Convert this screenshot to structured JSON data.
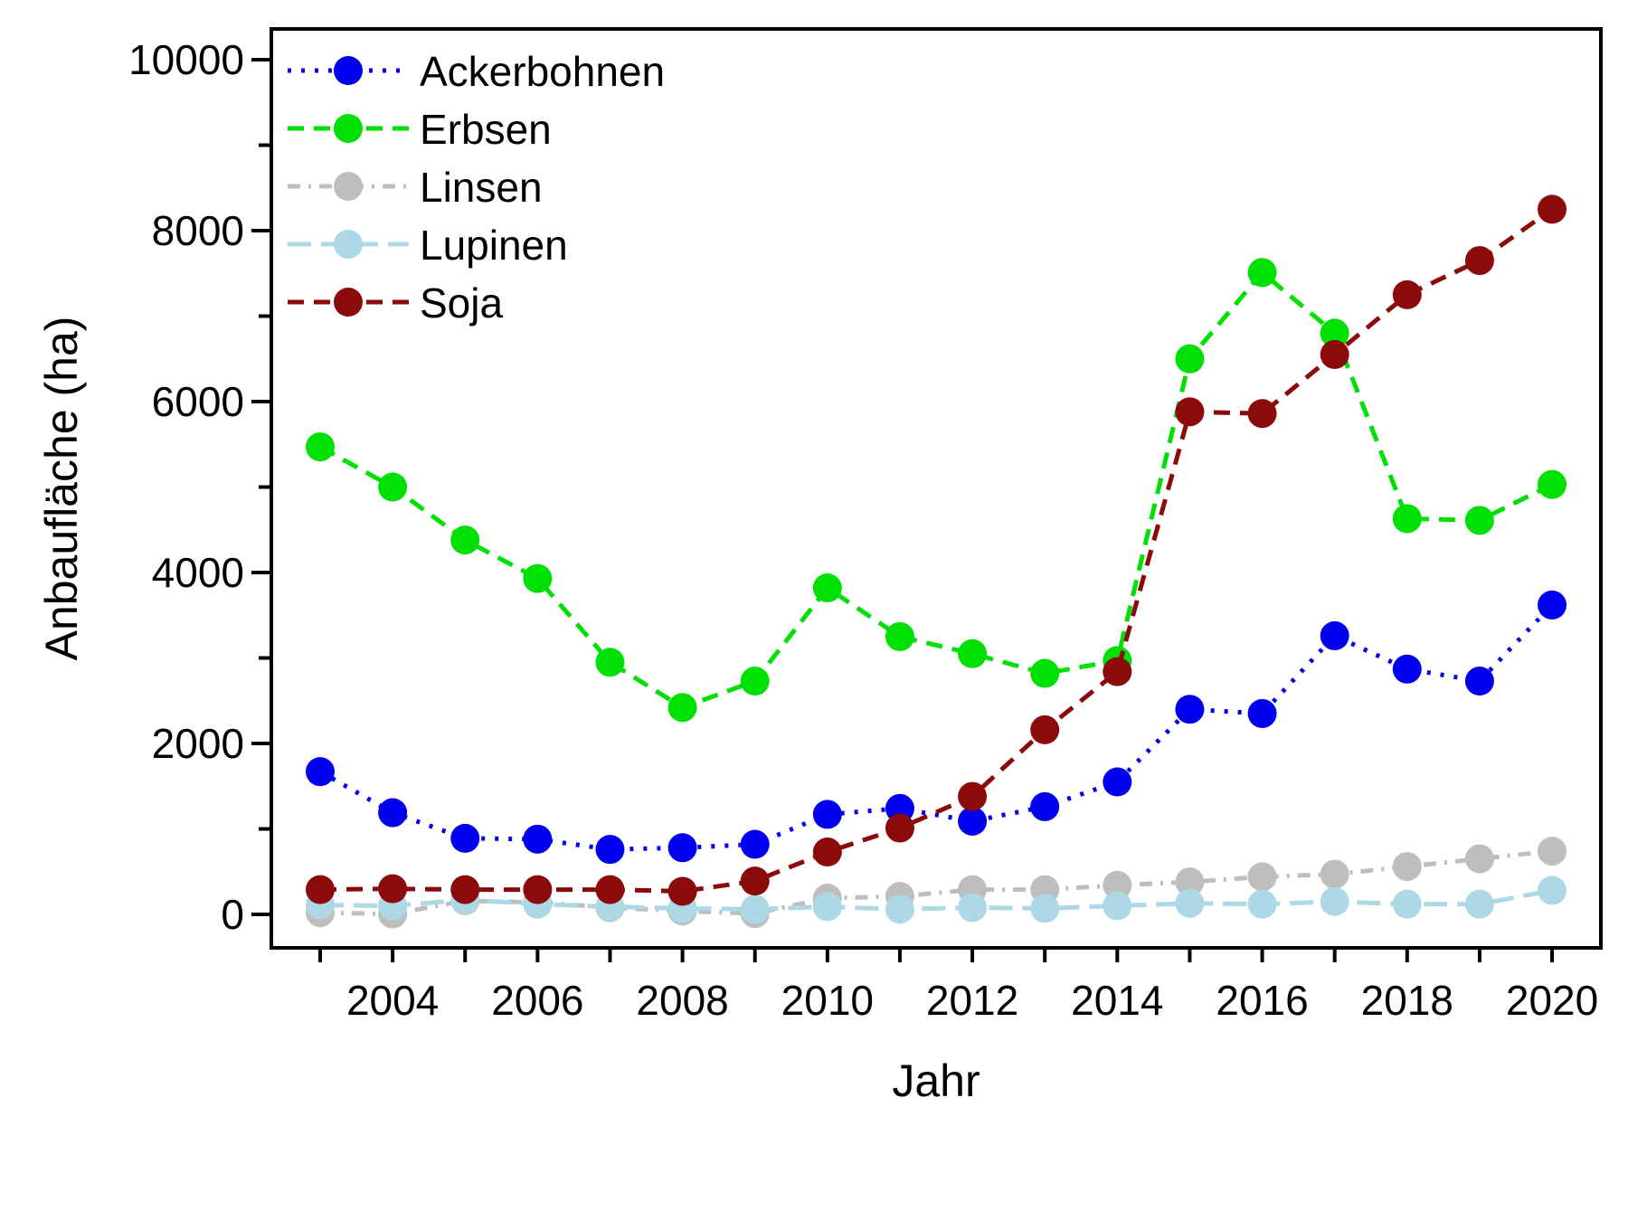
{
  "chart_data": {
    "type": "line",
    "title": "",
    "xlabel": "Jahr",
    "ylabel": "Anbaufläche (ha)",
    "x": [
      2003,
      2004,
      2005,
      2006,
      2007,
      2008,
      2009,
      2010,
      2011,
      2012,
      2013,
      2014,
      2015,
      2016,
      2017,
      2018,
      2019,
      2020
    ],
    "xlim": [
      2002.33,
      2020.67
    ],
    "ylim": [
      -390,
      10360
    ],
    "x_tick_every_year": true,
    "x_tick_labels": [
      2004,
      2006,
      2008,
      2010,
      2012,
      2014,
      2016,
      2018,
      2020
    ],
    "y_ticks_minor": [
      0,
      1000,
      2000,
      3000,
      4000,
      5000,
      6000,
      7000,
      8000,
      9000,
      10000
    ],
    "y_tick_labels": [
      0,
      2000,
      4000,
      6000,
      8000,
      10000
    ],
    "grid": false,
    "legend_position": "top-left-inside",
    "background_color": "#ffffff",
    "axis_color": "#000000",
    "series": [
      {
        "name": "Ackerbohnen",
        "color": "#0000EE",
        "linestyle": "dotted",
        "values": [
          1670,
          1190,
          890,
          880,
          760,
          780,
          820,
          1170,
          1240,
          1090,
          1260,
          1550,
          2400,
          2350,
          3260,
          2870,
          2730,
          3620
        ]
      },
      {
        "name": "Erbsen",
        "color": "#00E005",
        "linestyle": "dashed",
        "values": [
          5470,
          5000,
          4380,
          3930,
          2950,
          2420,
          2730,
          3820,
          3250,
          3050,
          2820,
          2970,
          6500,
          7510,
          6800,
          4630,
          4610,
          5030
        ]
      },
      {
        "name": "Linsen",
        "color": "#BEBEBE",
        "linestyle": "dashdot",
        "values": [
          20,
          5,
          160,
          140,
          80,
          40,
          10,
          190,
          210,
          290,
          290,
          340,
          380,
          440,
          470,
          560,
          650,
          740
        ]
      },
      {
        "name": "Lupinen",
        "color": "#ADD8E6",
        "linestyle": "longdash",
        "values": [
          110,
          100,
          170,
          120,
          90,
          70,
          60,
          90,
          60,
          80,
          70,
          100,
          130,
          120,
          150,
          120,
          120,
          280
        ]
      },
      {
        "name": "Soja",
        "color": "#8B0A0A",
        "linestyle": "dashed",
        "values": [
          290,
          300,
          290,
          290,
          290,
          270,
          390,
          730,
          1010,
          1380,
          2160,
          2840,
          5880,
          5860,
          6550,
          7250,
          7650,
          8250
        ]
      }
    ]
  }
}
